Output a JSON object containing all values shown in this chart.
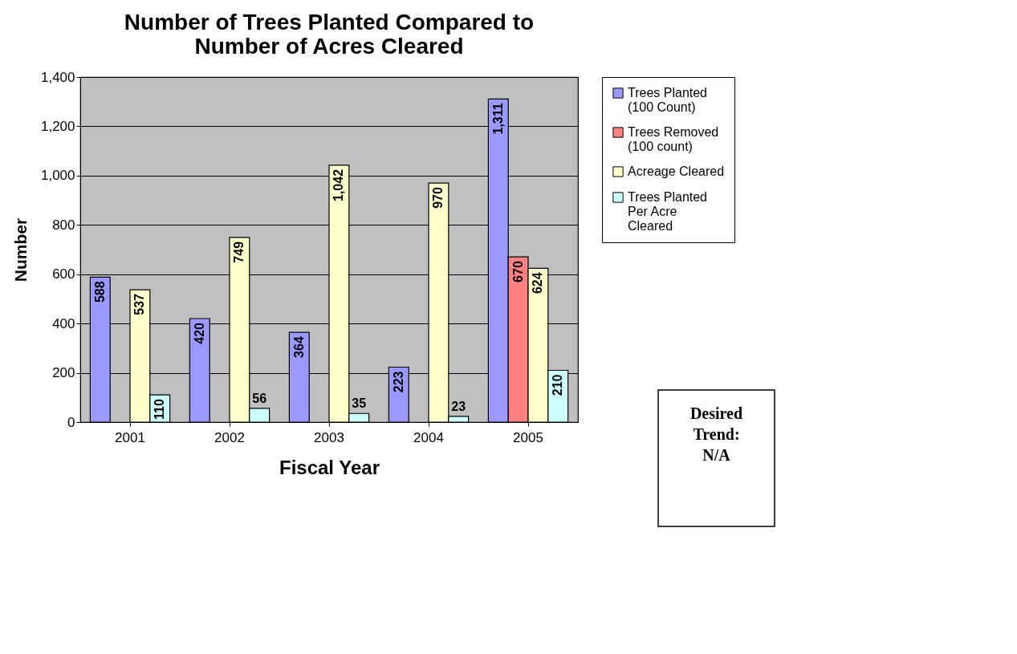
{
  "chart_data": {
    "type": "bar",
    "title": "Number of Trees Planted Compared to Number of Acres Cleared",
    "xlabel": "Fiscal Year",
    "ylabel": "Number",
    "categories": [
      "2001",
      "2002",
      "2003",
      "2004",
      "2005"
    ],
    "series": [
      {
        "name": "Trees Planted (100 Count)",
        "color": "#9999ff",
        "values": [
          588,
          420,
          364,
          223,
          1311
        ],
        "value_labels": [
          "588",
          "420",
          "364",
          "223",
          "1,311"
        ]
      },
      {
        "name": "Trees Removed (100 count)",
        "color": "#ff8080",
        "values": [
          null,
          null,
          null,
          null,
          670
        ],
        "value_labels": [
          null,
          null,
          null,
          null,
          "670"
        ]
      },
      {
        "name": "Acreage Cleared",
        "color": "#ffffcc",
        "values": [
          537,
          749,
          1042,
          970,
          624
        ],
        "value_labels": [
          "537",
          "749",
          "1,042",
          "970",
          "624"
        ]
      },
      {
        "name": "Trees Planted Per Acre Cleared",
        "color": "#ccffff",
        "values": [
          110,
          56,
          35,
          23,
          210
        ],
        "value_labels": [
          "110",
          "56",
          "35",
          "23",
          "210"
        ]
      }
    ],
    "ylim": [
      0,
      1400
    ],
    "yticks": [
      0,
      200,
      400,
      600,
      800,
      {
        "value": 1000,
        "label": "1,000"
      },
      {
        "value": 1200,
        "label": "1,200"
      },
      {
        "value": 1400,
        "label": "1,400"
      }
    ],
    "grid": "y",
    "legend": "right",
    "annotations": [
      "Desired Trend: N/A"
    ]
  }
}
